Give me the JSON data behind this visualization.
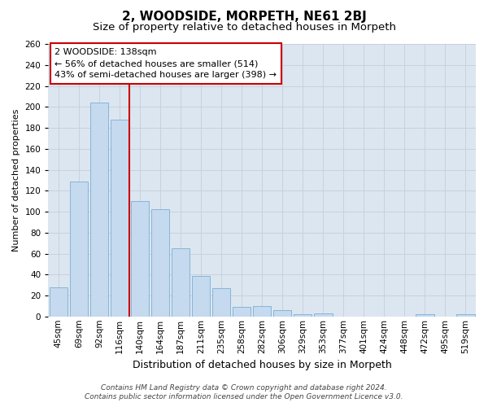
{
  "title": "2, WOODSIDE, MORPETH, NE61 2BJ",
  "subtitle": "Size of property relative to detached houses in Morpeth",
  "xlabel": "Distribution of detached houses by size in Morpeth",
  "ylabel": "Number of detached properties",
  "categories": [
    "45sqm",
    "69sqm",
    "92sqm",
    "116sqm",
    "140sqm",
    "164sqm",
    "187sqm",
    "211sqm",
    "235sqm",
    "258sqm",
    "282sqm",
    "306sqm",
    "329sqm",
    "353sqm",
    "377sqm",
    "401sqm",
    "424sqm",
    "448sqm",
    "472sqm",
    "495sqm",
    "519sqm"
  ],
  "values": [
    28,
    129,
    204,
    188,
    110,
    102,
    65,
    39,
    27,
    9,
    10,
    6,
    2,
    3,
    0,
    0,
    0,
    0,
    2,
    0,
    2
  ],
  "bar_color": "#c5d9ef",
  "bar_edge_color": "#7bafd4",
  "highlight_bar_idx": 4,
  "highlight_color": "#cc0000",
  "annotation_text": "2 WOODSIDE: 138sqm\n← 56% of detached houses are smaller (514)\n43% of semi-detached houses are larger (398) →",
  "annotation_box_facecolor": "#ffffff",
  "annotation_box_edgecolor": "#cc0000",
  "grid_color": "#c8d0dc",
  "plot_bg_color": "#dce6f0",
  "figure_bg_color": "#ffffff",
  "footer_line1": "Contains HM Land Registry data © Crown copyright and database right 2024.",
  "footer_line2": "Contains public sector information licensed under the Open Government Licence v3.0.",
  "ylim": [
    0,
    260
  ],
  "yticks": [
    0,
    20,
    40,
    60,
    80,
    100,
    120,
    140,
    160,
    180,
    200,
    220,
    240,
    260
  ],
  "title_fontsize": 11,
  "subtitle_fontsize": 9.5,
  "xlabel_fontsize": 9,
  "ylabel_fontsize": 8,
  "tick_fontsize": 7.5,
  "annot_fontsize": 8,
  "footer_fontsize": 6.5
}
